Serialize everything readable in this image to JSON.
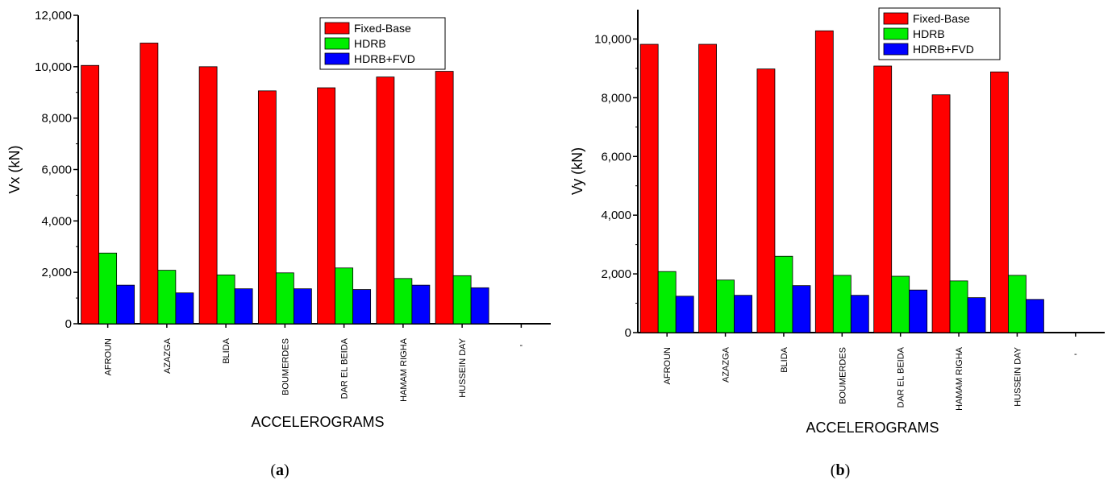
{
  "chart_data": [
    {
      "type": "bar",
      "panel_label": "a",
      "xlabel": "ACCELEROGRAMS",
      "ylabel": "Vx (kN)",
      "ylim": [
        0,
        12000
      ],
      "yticks": [
        0,
        2000,
        4000,
        6000,
        8000,
        10000,
        12000
      ],
      "ytick_labels": [
        "0",
        "2,000",
        "4,000",
        "6,000",
        "8,000",
        "10,000",
        "12,000"
      ],
      "categories": [
        "AFROUN",
        "AZAZGA",
        "BLIDA",
        "BOUMERDES",
        "DAR EL BEIDA",
        "HAMAM RIGHA",
        "HUSSEIN DAY"
      ],
      "extra_tick_label": "-",
      "legend_position": "top-right",
      "series": [
        {
          "name": "Fixed-Base",
          "color": "#ff0000",
          "values": [
            10050,
            10920,
            10000,
            9060,
            9180,
            9600,
            9820
          ]
        },
        {
          "name": "HDRB",
          "color": "#00ee00",
          "values": [
            2750,
            2080,
            1900,
            1980,
            2170,
            1760,
            1870
          ]
        },
        {
          "name": "HDRB+FVD",
          "color": "#0000ff",
          "values": [
            1500,
            1200,
            1360,
            1360,
            1330,
            1500,
            1400
          ]
        }
      ]
    },
    {
      "type": "bar",
      "panel_label": "b",
      "xlabel": "ACCELEROGRAMS",
      "ylabel": "Vy (kN)",
      "ylim": [
        0,
        11000
      ],
      "yticks": [
        0,
        2000,
        4000,
        6000,
        8000,
        10000
      ],
      "ytick_labels": [
        "0",
        "2,000",
        "4,000",
        "6,000",
        "8,000",
        "10,000"
      ],
      "categories": [
        "AFROUN",
        "AZAZGA",
        "BLIDA",
        "BOUMERDES",
        "DAR EL BEIDA",
        "HAMAM RIGHA",
        "HUSSEIN DAY"
      ],
      "extra_tick_label": "-",
      "legend_position": "top-right",
      "series": [
        {
          "name": "Fixed-Base",
          "color": "#ff0000",
          "values": [
            9820,
            9820,
            8980,
            10280,
            9080,
            8100,
            8880
          ]
        },
        {
          "name": "HDRB",
          "color": "#00ee00",
          "values": [
            2080,
            1790,
            2600,
            1950,
            1920,
            1760,
            1950
          ]
        },
        {
          "name": "HDRB+FVD",
          "color": "#0000ff",
          "values": [
            1240,
            1270,
            1600,
            1270,
            1450,
            1190,
            1130
          ]
        }
      ]
    }
  ]
}
